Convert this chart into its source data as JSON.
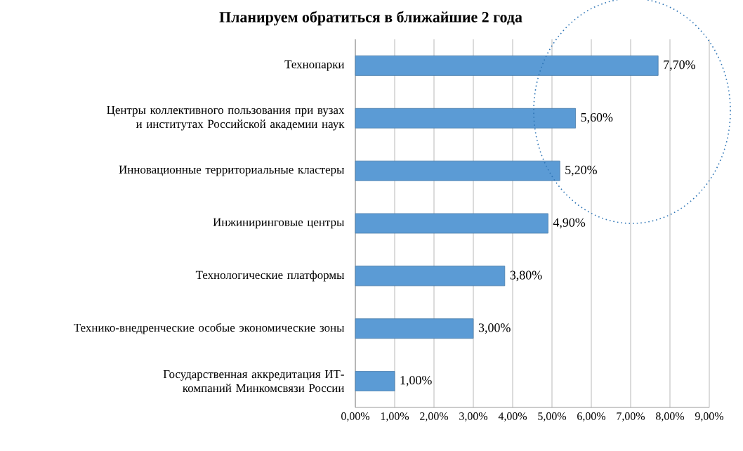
{
  "chart_data": {
    "type": "bar",
    "orientation": "horizontal",
    "title": "Планируем обратиться в ближайшие 2 года",
    "categories": [
      "Технопарки",
      "Центры коллективного пользования при вузах и институтах Российской академии наук",
      "Инновационные территориальные кластеры",
      "Инжиниринговые центры",
      "Технологические платформы",
      "Технико-внедренческие особые экономические зоны",
      "Государственная аккредитация ИТ-компаний Минкомсвязи России"
    ],
    "values": [
      7.7,
      5.6,
      5.2,
      4.9,
      3.8,
      3.0,
      1.0
    ],
    "value_labels": [
      "7,70%",
      "5,60%",
      "5,20%",
      "4,90%",
      "3,80%",
      "3,00%",
      "1,00%"
    ],
    "color": "#5b9bd5",
    "xlim": [
      0,
      9
    ],
    "xticks": [
      {
        "value": 0,
        "label": "0,00%"
      },
      {
        "value": 1,
        "label": "1,00%"
      },
      {
        "value": 2,
        "label": "2,00%"
      },
      {
        "value": 3,
        "label": "3,00%"
      },
      {
        "value": 4,
        "label": "4,00%"
      },
      {
        "value": 5,
        "label": "5,00%"
      },
      {
        "value": 6,
        "label": "6,00%"
      },
      {
        "value": 7,
        "label": "7,00%"
      },
      {
        "value": 8,
        "label": "8,00%"
      },
      {
        "value": 9,
        "label": "9,00%"
      }
    ],
    "grid": "x"
  }
}
